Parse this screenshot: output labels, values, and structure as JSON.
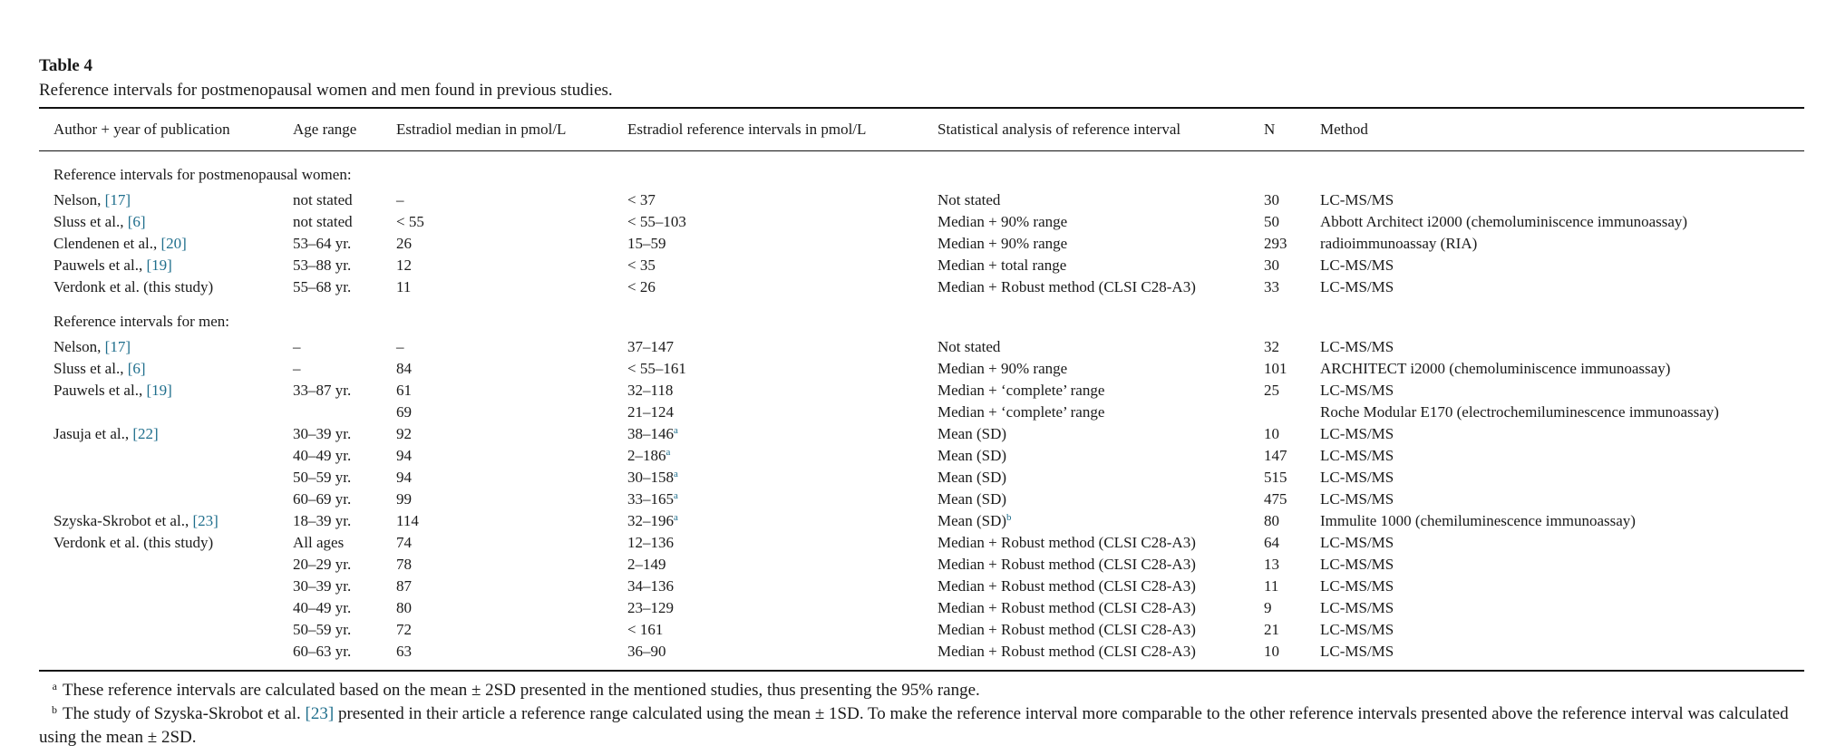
{
  "table": {
    "label": "Table 4",
    "caption": "Reference intervals for postmenopausal women and men found in previous studies.",
    "columns": [
      "Author + year of publication",
      "Age range",
      "Estradiol median in pmol/L",
      "Estradiol reference intervals in pmol/L",
      "Statistical analysis of reference interval",
      "N",
      "Method"
    ],
    "sections": [
      {
        "title": "Reference intervals for postmenopausal women:",
        "rows": [
          {
            "author": "Nelson, ",
            "ref": "[17]",
            "age": "not stated",
            "median": "–",
            "interval": "< 37",
            "sup": "",
            "analysis": "Not stated",
            "asup": "",
            "n": "30",
            "method": "LC-MS/MS"
          },
          {
            "author": "Sluss et al., ",
            "ref": "[6]",
            "age": "not stated",
            "median": " < 55",
            "interval": "< 55–103",
            "sup": "",
            "analysis": "Median + 90% range",
            "asup": "",
            "n": "50",
            "method": "Abbott Architect i2000 (chemoluminiscence immunoassay)"
          },
          {
            "author": "Clendenen et al., ",
            "ref": "[20]",
            "age": "53–64 yr.",
            "median": "26",
            "interval": "15–59",
            "sup": "",
            "analysis": "Median + 90% range",
            "asup": "",
            "n": "293",
            "method": "radioimmunoassay (RIA)"
          },
          {
            "author": "Pauwels et al., ",
            "ref": "[19]",
            "age": "53–88 yr.",
            "median": "12",
            "interval": "<  35",
            "sup": "",
            "analysis": "Median + total range",
            "asup": "",
            "n": "30",
            "method": "LC-MS/MS"
          },
          {
            "author": "Verdonk et al. (this study)",
            "ref": "",
            "age": "55–68 yr.",
            "median": "11",
            "interval": "< 26",
            "sup": "",
            "analysis": "Median + Robust method (CLSI C28-A3)",
            "asup": "",
            "n": "33",
            "method": "LC-MS/MS"
          }
        ]
      },
      {
        "title": "Reference intervals for men:",
        "rows": [
          {
            "author": "Nelson, ",
            "ref": "[17]",
            "age": "–",
            "median": "–",
            "interval": "37–147",
            "sup": "",
            "analysis": "Not stated",
            "asup": "",
            "n": "32",
            "method": "LC-MS/MS"
          },
          {
            "author": "Sluss et al., ",
            "ref": "[6]",
            "age": "–",
            "median": "84",
            "interval": "< 55–161",
            "sup": "",
            "analysis": "Median + 90% range",
            "asup": "",
            "n": "101",
            "method": "ARCHITECT i2000 (chemoluminiscence immunoassay)"
          },
          {
            "author": "Pauwels et al., ",
            "ref": "[19]",
            "age": "33–87 yr.",
            "median": "61",
            "interval": "32–118",
            "sup": "",
            "analysis": "Median + ‘complete’ range",
            "asup": "",
            "n": "25",
            "method": "LC-MS/MS"
          },
          {
            "author": "",
            "ref": "",
            "age": "",
            "median": "69",
            "interval": "21–124",
            "sup": "",
            "analysis": "Median + ‘complete’ range",
            "asup": "",
            "n": "",
            "method": "Roche Modular E170 (electrochemiluminescence immunoassay)"
          },
          {
            "author": "Jasuja et al., ",
            "ref": "[22]",
            "age": "30–39 yr.",
            "median": "92",
            "interval": "38–146",
            "sup": "a",
            "analysis": "Mean (SD)",
            "asup": "",
            "n": "10",
            "method": "LC-MS/MS"
          },
          {
            "author": "",
            "ref": "",
            "age": "40–49 yr.",
            "median": "94",
            "interval": "2–186",
            "sup": "a",
            "analysis": "Mean (SD)",
            "asup": "",
            "n": "147",
            "method": "LC-MS/MS"
          },
          {
            "author": "",
            "ref": "",
            "age": "50–59 yr.",
            "median": "94",
            "interval": "30–158",
            "sup": "a",
            "analysis": "Mean (SD)",
            "asup": "",
            "n": "515",
            "method": "LC-MS/MS"
          },
          {
            "author": "",
            "ref": "",
            "age": "60–69 yr.",
            "median": "99",
            "interval": "33–165",
            "sup": "a",
            "analysis": "Mean (SD)",
            "asup": "",
            "n": "475",
            "method": "LC-MS/MS"
          },
          {
            "author": "Szyska-Skrobot et al., ",
            "ref": "[23]",
            "age": "18–39 yr.",
            "median": "114",
            "interval": "32–196",
            "sup": "a",
            "analysis": "Mean (SD)",
            "asup": "b",
            "n": "80",
            "method": "Immulite 1000 (chemiluminescence immunoassay)"
          },
          {
            "author": "Verdonk et al. (this study)",
            "ref": "",
            "age": "All ages",
            "median": "74",
            "interval": "12–136",
            "sup": "",
            "analysis": "Median + Robust method (CLSI C28-A3)",
            "asup": "",
            "n": "64",
            "method": "LC-MS/MS"
          },
          {
            "author": "",
            "ref": "",
            "age": "20–29 yr.",
            "median": "78",
            "interval": "2–149",
            "sup": "",
            "analysis": "Median + Robust method (CLSI C28-A3)",
            "asup": "",
            "n": "13",
            "method": "LC-MS/MS"
          },
          {
            "author": "",
            "ref": "",
            "age": "30–39 yr.",
            "median": "87",
            "interval": "34–136",
            "sup": "",
            "analysis": "Median + Robust method (CLSI C28-A3)",
            "asup": "",
            "n": "11",
            "method": "LC-MS/MS"
          },
          {
            "author": "",
            "ref": "",
            "age": "40–49 yr.",
            "median": "80",
            "interval": "23–129",
            "sup": "",
            "analysis": "Median + Robust method (CLSI C28-A3)",
            "asup": "",
            "n": "9",
            "method": "LC-MS/MS"
          },
          {
            "author": "",
            "ref": "",
            "age": "50–59 yr.",
            "median": "72",
            "interval": "< 161",
            "sup": "",
            "analysis": "Median + Robust method (CLSI C28-A3)",
            "asup": "",
            "n": "21",
            "method": "LC-MS/MS"
          },
          {
            "author": "",
            "ref": "",
            "age": "60–63 yr.",
            "median": "63",
            "interval": "36–90",
            "sup": "",
            "analysis": "Median + Robust method (CLSI C28-A3)",
            "asup": "",
            "n": "10",
            "method": "LC-MS/MS"
          }
        ]
      }
    ],
    "footnotes": [
      {
        "mark": "a",
        "parts": [
          "These reference intervals are calculated based on the mean ± 2SD presented in the mentioned studies, thus presenting the 95% range."
        ],
        "ref": ""
      },
      {
        "mark": "b",
        "parts": [
          "The study of Szyska-Skrobot et al. ",
          " presented in their article a reference range calculated using the mean ± 1SD. To make the reference interval more comparable to the other reference intervals presented above the reference interval was calculated using the mean ± 2SD."
        ],
        "ref": "[23]"
      }
    ],
    "colors": {
      "text": "#1a1a1a",
      "link": "#1f6e8c",
      "rule": "#111111"
    }
  }
}
